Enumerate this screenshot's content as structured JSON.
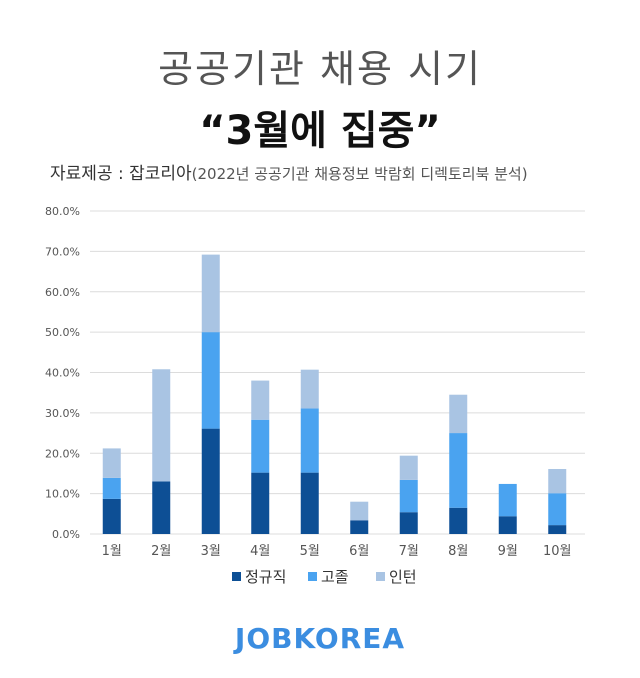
{
  "header": {
    "title_line1": "공공기관 채용 시기",
    "title_line2": "“3월에 집중”",
    "source_label": "자료제공 : 잡코리아",
    "source_note": "(2022년 공공기관 채용정보 박람회 디렉토리북 분석)"
  },
  "brand": "JOBKOREA",
  "colors": {
    "정규직": "#0d4f95",
    "고졸": "#4aa3f0",
    "인턴": "#a9c4e3",
    "grid": "#dcdcdc",
    "axis_text": "#555555"
  },
  "chart_data": {
    "type": "bar",
    "stacked": true,
    "categories": [
      "1월",
      "2월",
      "3월",
      "4월",
      "5월",
      "6월",
      "7월",
      "8월",
      "9월",
      "10월"
    ],
    "series": [
      {
        "name": "정규직",
        "values": [
          8.7,
          13.0,
          26.1,
          15.2,
          15.2,
          3.4,
          5.4,
          6.5,
          4.4,
          2.2
        ]
      },
      {
        "name": "고졸",
        "values": [
          5.2,
          0.0,
          23.9,
          13.1,
          15.9,
          0.0,
          8.0,
          18.5,
          8.0,
          7.9
        ]
      },
      {
        "name": "인턴",
        "values": [
          7.3,
          27.8,
          19.2,
          9.7,
          9.6,
          4.6,
          6.0,
          9.5,
          0.0,
          6.0
        ]
      }
    ],
    "y_ticks": [
      "0.0%",
      "10.0%",
      "20.0%",
      "30.0%",
      "40.0%",
      "50.0%",
      "60.0%",
      "70.0%",
      "80.0%"
    ],
    "ylim": [
      0,
      80
    ],
    "grid": true,
    "legend_position": "bottom"
  }
}
